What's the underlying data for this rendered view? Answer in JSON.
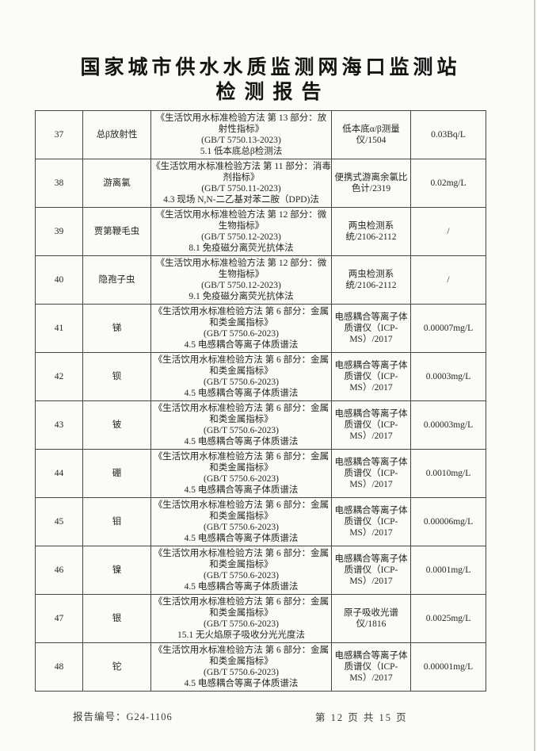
{
  "header": {
    "title_line1": "国家城市供水水质监测网海口监测站",
    "title_line2": "检测报告"
  },
  "ink_color": "#242424",
  "paper_color": "#fbfbfa",
  "table": {
    "rows": [
      {
        "no": "37",
        "name": "总β放射性",
        "method_lines": [
          "《生活饮用水标准检验方法 第 13 部分：放射性指标》",
          "(GB/T 5750.13-2023)",
          "5.1  低本底总β检测法"
        ],
        "instrument": "低本底α/β测量仪/1504",
        "result": "0.03Bq/L"
      },
      {
        "no": "38",
        "name": "游离氯",
        "method_lines": [
          "《生活饮用水标准检验方法 第 11 部分：消毒剂指标》",
          "(GB/T 5750.11-2023)",
          "4.3  现场 N,N-二乙基对苯二胺（DPD)法"
        ],
        "instrument": "便携式游离余氯比色计/2319",
        "result": "0.02mg/L"
      },
      {
        "no": "39",
        "name": "贾第鞭毛虫",
        "method_lines": [
          "《生活饮用水标准检验方法 第 12 部分：微生物指标》",
          "(GB/T 5750.12-2023)",
          "8.1  免疫磁分离荧光抗体法"
        ],
        "instrument": "两虫检测系统/2106-2112",
        "result": "/"
      },
      {
        "no": "40",
        "name": "隐孢子虫",
        "method_lines": [
          "《生活饮用水标准检验方法 第 12 部分：微生物指标》",
          "(GB/T 5750.12-2023)",
          "9.1  免疫磁分离荧光抗体法"
        ],
        "instrument": "两虫检测系统/2106-2112",
        "result": "/"
      },
      {
        "no": "41",
        "name": "锑",
        "method_lines": [
          "《生活饮用水标准检验方法 第 6 部分：金属和类金属指标》",
          "(GB/T 5750.6-2023)",
          "4.5  电感耦合等离子体质谱法"
        ],
        "instrument": "电感耦合等离子体质谱仪（ICP-MS）/2017",
        "result": "0.00007mg/L"
      },
      {
        "no": "42",
        "name": "钡",
        "method_lines": [
          "《生活饮用水标准检验方法 第 6 部分：金属和类金属指标》",
          "(GB/T 5750.6-2023)",
          "4.5  电感耦合等离子体质谱法"
        ],
        "instrument": "电感耦合等离子体质谱仪（ICP-MS）/2017",
        "result": "0.0003mg/L"
      },
      {
        "no": "43",
        "name": "铍",
        "method_lines": [
          "《生活饮用水标准检验方法 第 6 部分：金属和类金属指标》",
          "(GB/T 5750.6-2023)",
          "4.5  电感耦合等离子体质谱法"
        ],
        "instrument": "电感耦合等离子体质谱仪（ICP-MS）/2017",
        "result": "0.00003mg/L"
      },
      {
        "no": "44",
        "name": "硼",
        "method_lines": [
          "《生活饮用水标准检验方法 第 6 部分：金属和类金属指标》",
          "(GB/T 5750.6-2023)",
          "4.5  电感耦合等离子体质谱法"
        ],
        "instrument": "电感耦合等离子体质谱仪（ICP-MS）/2017",
        "result": "0.0010mg/L"
      },
      {
        "no": "45",
        "name": "钼",
        "method_lines": [
          "《生活饮用水标准检验方法 第 6 部分：金属和类金属指标》",
          "(GB/T 5750.6-2023)",
          "4.5  电感耦合等离子体质谱法"
        ],
        "instrument": "电感耦合等离子体质谱仪（ICP-MS）/2017",
        "result": "0.00006mg/L"
      },
      {
        "no": "46",
        "name": "镍",
        "method_lines": [
          "《生活饮用水标准检验方法 第 6 部分：金属和类金属指标》",
          "(GB/T 5750.6-2023)",
          "4.5  电感耦合等离子体质谱法"
        ],
        "instrument": "电感耦合等离子体质谱仪（ICP-MS）/2017",
        "result": "0.0001mg/L"
      },
      {
        "no": "47",
        "name": "银",
        "method_lines": [
          "《生活饮用水标准检验方法 第 6 部分：金属和类金属指标》",
          "(GB/T 5750.6-2023)",
          "15.1  无火焰原子吸收分光光度法"
        ],
        "instrument": "原子吸收光谱仪/1816",
        "result": "0.0025mg/L"
      },
      {
        "no": "48",
        "name": "铊",
        "method_lines": [
          "《生活饮用水标准检验方法 第 6 部分：金属和类金属指标》",
          "(GB/T 5750.6-2023)",
          "4.5  电感耦合等离子体质谱法"
        ],
        "instrument": "电感耦合等离子体质谱仪（ICP-MS）/2017",
        "result": "0.00001mg/L"
      }
    ]
  },
  "footer": {
    "report_no": "报告编号：G24-1106",
    "page_info": "第 12 页  共 15 页"
  }
}
